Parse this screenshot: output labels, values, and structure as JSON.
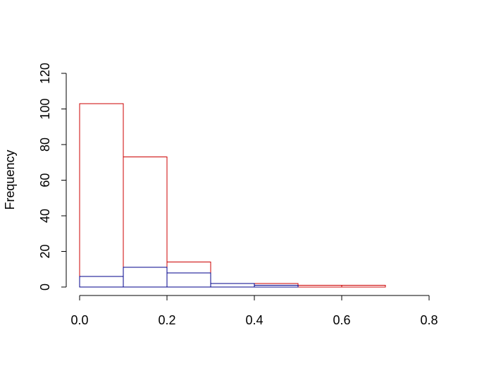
{
  "chart_data": {
    "type": "histogram",
    "title": "",
    "xlabel": "",
    "ylabel": "Frequency",
    "xlim": [
      0.0,
      0.8
    ],
    "ylim": [
      0,
      120
    ],
    "x_ticks": [
      "0.0",
      "0.2",
      "0.4",
      "0.6",
      "0.8"
    ],
    "y_ticks": [
      "0",
      "20",
      "40",
      "60",
      "80",
      "100",
      "120"
    ],
    "bins": [
      [
        0.0,
        0.1
      ],
      [
        0.1,
        0.2
      ],
      [
        0.2,
        0.3
      ],
      [
        0.3,
        0.4
      ],
      [
        0.4,
        0.5
      ],
      [
        0.5,
        0.6
      ],
      [
        0.6,
        0.7
      ]
    ],
    "series": [
      {
        "color": "#cc0000",
        "values": [
          103,
          73,
          14,
          0,
          2,
          1,
          1
        ]
      },
      {
        "color": "#00008b",
        "values": [
          6,
          11,
          8,
          2,
          1,
          0,
          0
        ]
      }
    ],
    "grid": false
  }
}
